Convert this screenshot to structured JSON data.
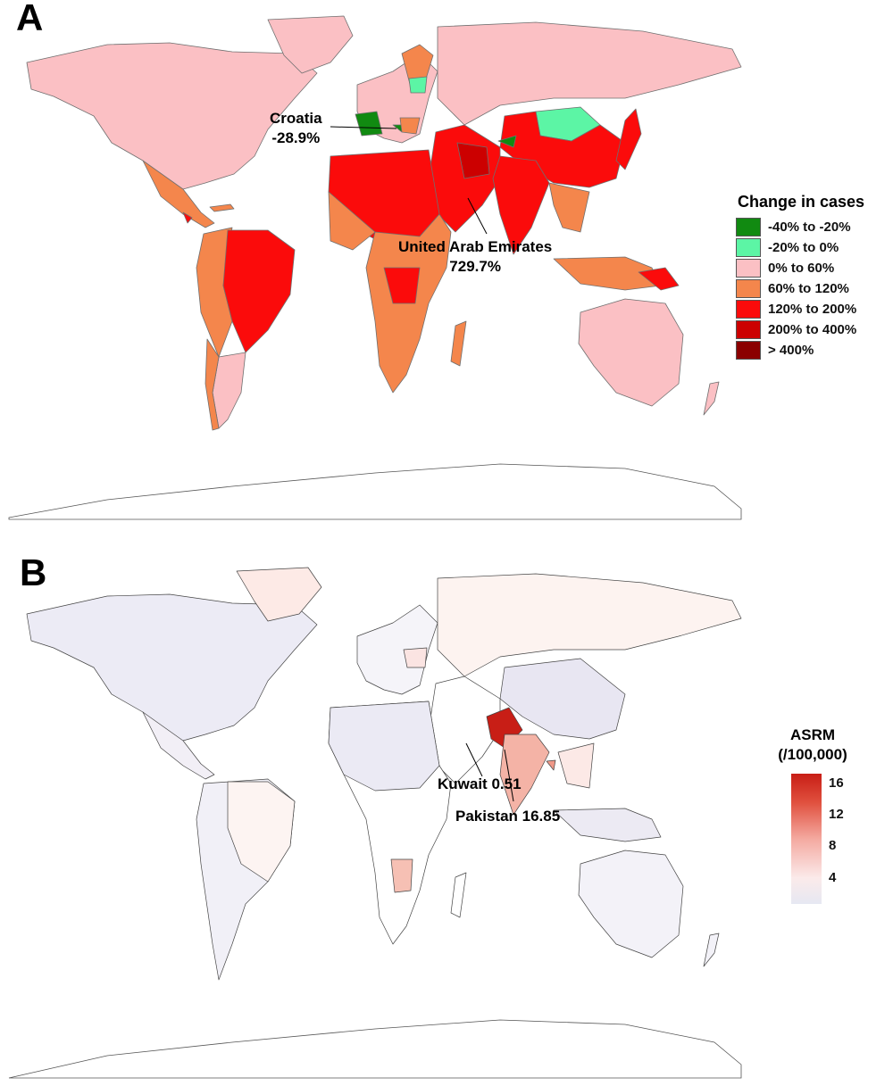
{
  "panel_a": {
    "letter": "A",
    "legend": {
      "title": "Change in cases",
      "items": [
        {
          "label": "-40% to -20%",
          "color": "#118a11"
        },
        {
          "label": "-20% to 0%",
          "color": "#5cf5a5"
        },
        {
          "label": "0% to 60%",
          "color": "#fbc0c4"
        },
        {
          "label": "60% to 120%",
          "color": "#f4864c"
        },
        {
          "label": "120% to 200%",
          "color": "#fb0b0b"
        },
        {
          "label": "200% to 400%",
          "color": "#cc0000"
        },
        {
          "label": "> 400%",
          "color": "#8b0000"
        }
      ]
    },
    "annotations": {
      "croatia_name": "Croatia",
      "croatia_value": "-28.9%",
      "uae_name": "United Arab Emirates",
      "uae_value": "729.7%"
    }
  },
  "panel_b": {
    "letter": "B",
    "legend": {
      "title_line1": "ASRM",
      "title_line2": "(/100,000)",
      "ticks": [
        "16",
        "12",
        "8",
        "4"
      ]
    },
    "annotations": {
      "kuwait": "Kuwait 0.51",
      "pakistan": "Pakistan 16.85"
    }
  }
}
